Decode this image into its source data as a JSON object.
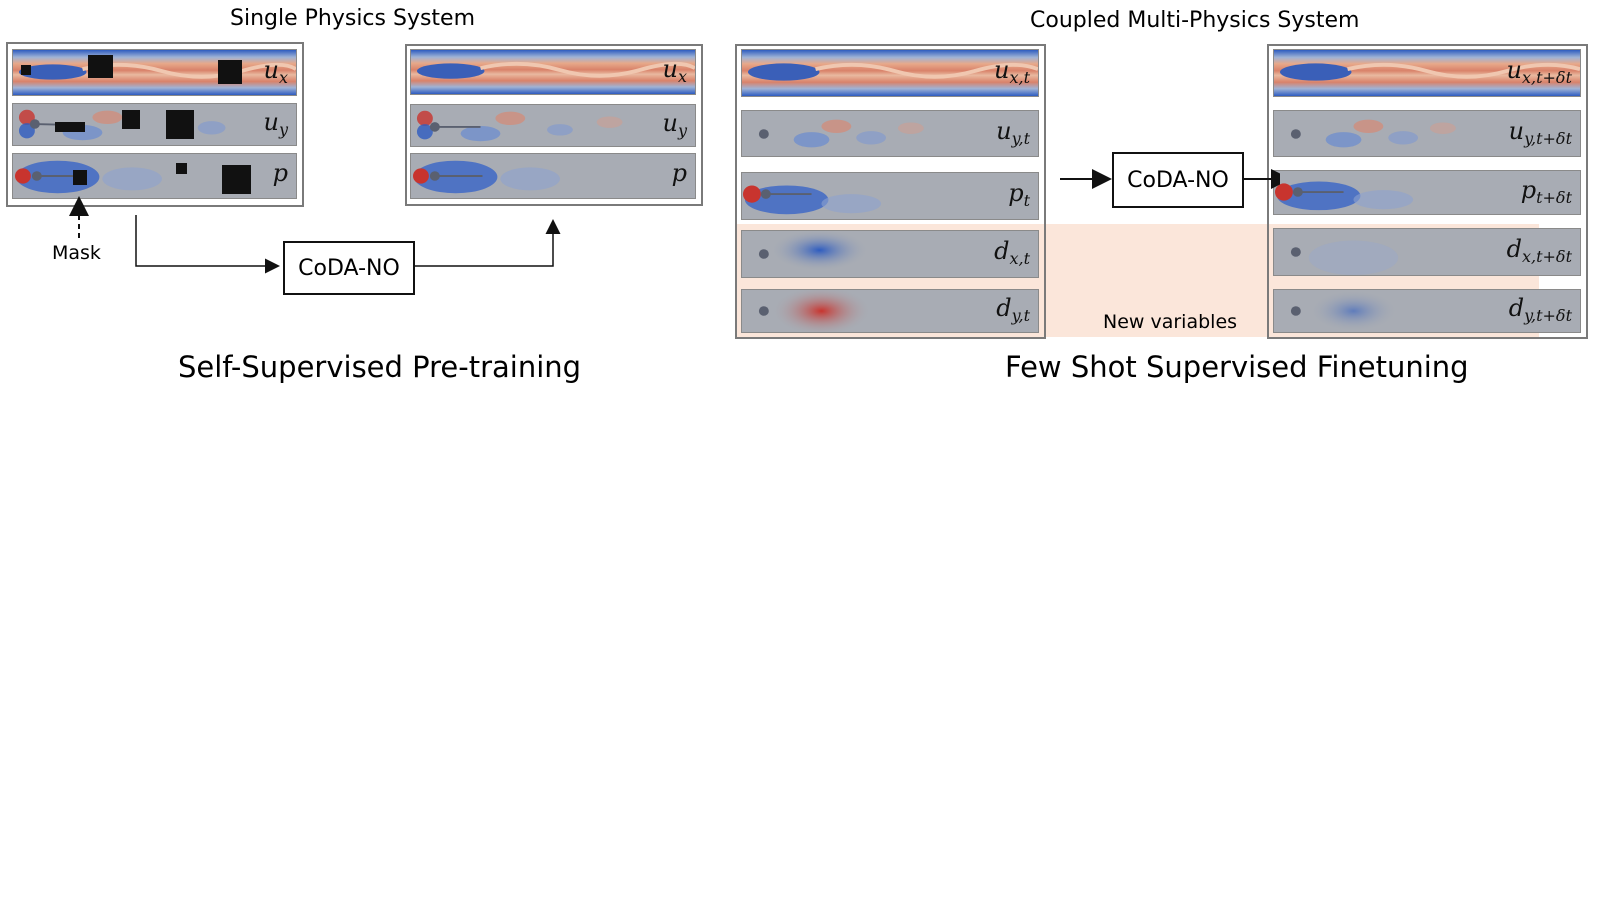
{
  "left": {
    "title": "Single Physics System",
    "caption": "Self-Supervised Pre-training",
    "mask_label": "Mask",
    "model_label": "CoDA-NO",
    "input_vars": [
      {
        "base": "u",
        "sub": "x"
      },
      {
        "base": "u",
        "sub": "y"
      },
      {
        "base": "p",
        "sub": ""
      }
    ],
    "output_vars": [
      {
        "base": "u",
        "sub": "x"
      },
      {
        "base": "u",
        "sub": "y"
      },
      {
        "base": "p",
        "sub": ""
      }
    ]
  },
  "right": {
    "title": "Coupled Multi-Physics System",
    "caption": "Few Shot Supervised Finetuning",
    "model_label": "CoDA-NO",
    "new_variables_label": "New variables",
    "input_vars": [
      {
        "base": "u",
        "sub": "x,t"
      },
      {
        "base": "u",
        "sub": "y,t"
      },
      {
        "base": "p",
        "sub": "t"
      },
      {
        "base": "d",
        "sub": "x,t"
      },
      {
        "base": "d",
        "sub": "y,t"
      }
    ],
    "output_vars": [
      {
        "base": "u",
        "sub": "x,t+δt"
      },
      {
        "base": "u",
        "sub": "y,t+δt"
      },
      {
        "base": "p",
        "sub": "t+δt"
      },
      {
        "base": "d",
        "sub": "x,t+δt"
      },
      {
        "base": "d",
        "sub": "y,t+δt"
      }
    ]
  },
  "colors": {
    "field_red": "#c8342e",
    "field_blue": "#2e5cc0",
    "field_neutral": "#a8acb4",
    "new_variable_band": "#fbe6da",
    "frame": "#7a7a7a"
  }
}
